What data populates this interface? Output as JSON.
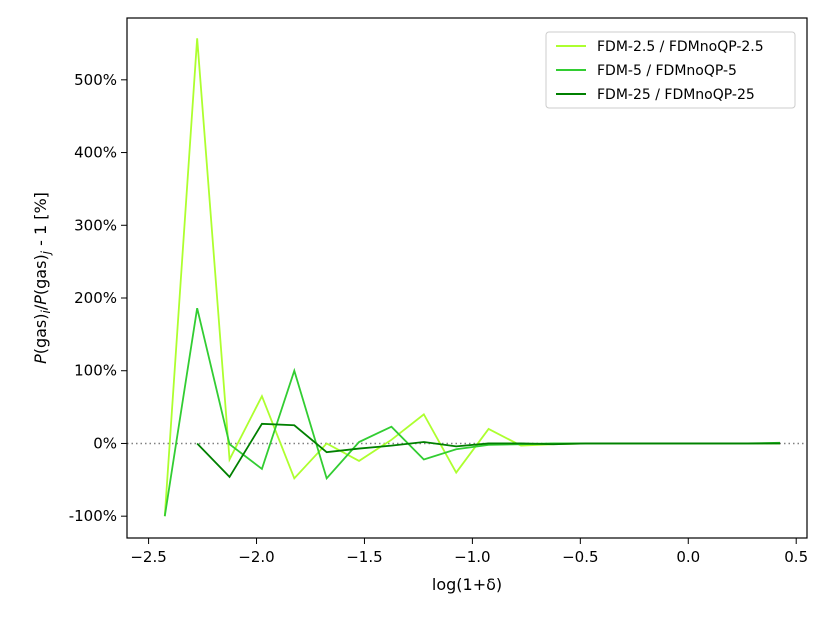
{
  "chart_data": {
    "type": "line",
    "xlabel": "log(1+δ)",
    "ylabel": "P(gas)i/P(gas)j - 1 [%]",
    "ylabel_parts": {
      "p1": "P",
      "t1": "(gas)",
      "s1": "i",
      "slash": "/",
      "p2": "P",
      "t2": "(gas)",
      "s2": "j",
      "tail": " - 1 [%]"
    },
    "xlim": [
      -2.6,
      0.55
    ],
    "ylim": [
      -130,
      585
    ],
    "x_ticks": [
      -2.5,
      -2.0,
      -1.5,
      -1.0,
      -0.5,
      0.0,
      0.5
    ],
    "x_tick_labels": [
      "−2.5",
      "−2.0",
      "−1.5",
      "−1.0",
      "−0.5",
      "0.0",
      "0.5"
    ],
    "y_ticks": [
      -100,
      0,
      100,
      200,
      300,
      400,
      500
    ],
    "y_tick_labels": [
      "-100%",
      "0%",
      "100%",
      "200%",
      "300%",
      "400%",
      "500%"
    ],
    "reference_line": {
      "y": 0,
      "style": "dotted",
      "color": "#808080"
    },
    "grid": false,
    "legend_position": "top-right",
    "series": [
      {
        "name": "FDM-2.5 / FDMnoQP-2.5",
        "color": "#adff2f",
        "x": [
          -2.425,
          -2.275,
          -2.125,
          -1.975,
          -1.825,
          -1.675,
          -1.525,
          -1.375,
          -1.225,
          -1.075,
          -0.925,
          -0.775,
          -0.625,
          -0.475,
          -0.325,
          -0.175,
          -0.025,
          0.125,
          0.275,
          0.425
        ],
        "y": [
          -100,
          557,
          -22,
          65,
          -48,
          0,
          -24,
          5,
          40,
          -40,
          20,
          -3,
          -1,
          0,
          0,
          0,
          0,
          0,
          0,
          0
        ]
      },
      {
        "name": "FDM-5 / FDMnoQP-5",
        "color": "#32cd32",
        "x": [
          -2.425,
          -2.275,
          -2.125,
          -1.975,
          -1.825,
          -1.675,
          -1.525,
          -1.375,
          -1.225,
          -1.075,
          -0.925,
          -0.775,
          -0.625,
          -0.475,
          -0.325,
          -0.175,
          -0.025,
          0.125,
          0.275,
          0.425
        ],
        "y": [
          -100,
          186,
          -1,
          -35,
          100,
          -48,
          2,
          23,
          -22,
          -8,
          -2,
          -1,
          0,
          0,
          0,
          0,
          0,
          0,
          0,
          1
        ]
      },
      {
        "name": "FDM-25 / FDMnoQP-25",
        "color": "#008000",
        "x": [
          -2.275,
          -2.125,
          -1.975,
          -1.825,
          -1.675,
          -1.525,
          -1.375,
          -1.225,
          -1.075,
          -0.925,
          -0.775,
          -0.625,
          -0.475,
          -0.325,
          -0.175,
          -0.025,
          0.125,
          0.275,
          0.425
        ],
        "y": [
          0,
          -46,
          27,
          25,
          -12,
          -7,
          -3,
          2,
          -4,
          0,
          0,
          -1,
          0,
          0,
          0,
          0,
          0,
          0,
          0
        ]
      }
    ]
  }
}
